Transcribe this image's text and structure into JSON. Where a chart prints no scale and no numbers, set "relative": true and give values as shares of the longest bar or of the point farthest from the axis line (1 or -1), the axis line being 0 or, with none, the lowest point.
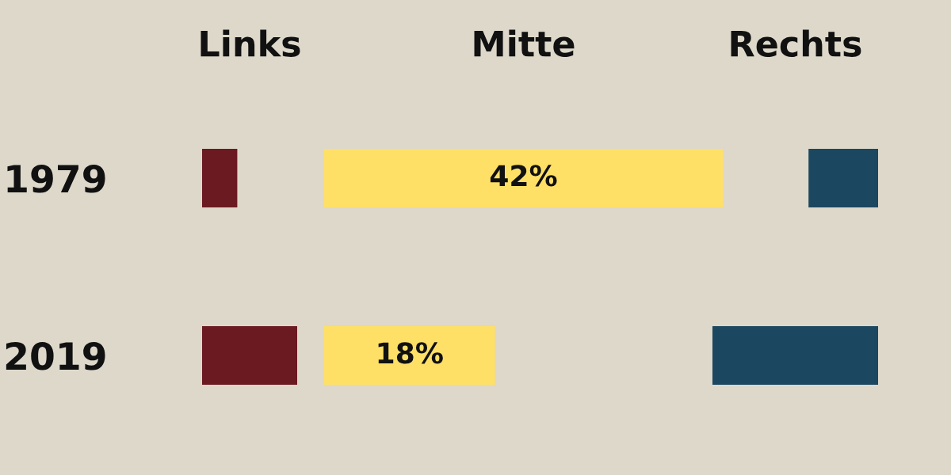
{
  "chart_data": [
    {
      "type": "bar",
      "orientation": "horizontal",
      "relative": true,
      "title": "Links",
      "categories": [
        "1979",
        "2019"
      ],
      "tick_labels": "y",
      "series": [
        {
          "color": "#6b1a21",
          "values": [
            0.37,
            1
          ]
        }
      ]
    },
    {
      "type": "bar",
      "orientation": "horizontal",
      "title": "Mitte",
      "categories": [
        "1979",
        "2019"
      ],
      "tick_labels": false,
      "xlim": [
        0,
        42
      ],
      "series": [
        {
          "color": "#ffe066",
          "values": [
            42,
            18
          ],
          "value_labels": [
            "42%",
            "18%"
          ]
        }
      ]
    },
    {
      "type": "bar",
      "orientation": "horizontal",
      "relative": true,
      "title": "Rechts",
      "categories": [
        "1979",
        "2019"
      ],
      "tick_labels": false,
      "series": [
        {
          "color": "#1c4760",
          "values": [
            0.42,
            1
          ]
        }
      ]
    }
  ]
}
